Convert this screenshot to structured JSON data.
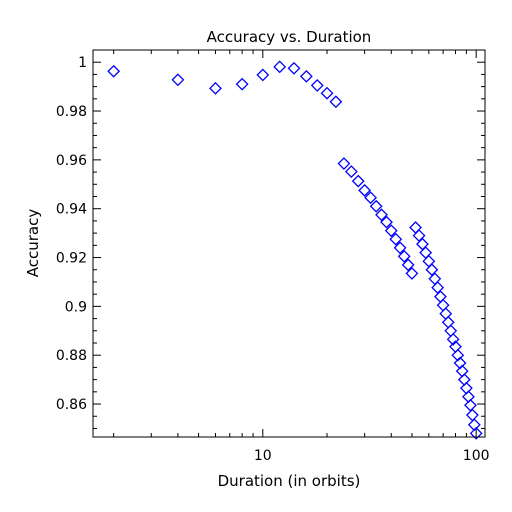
{
  "chart_data": {
    "type": "scatter",
    "title": "Accuracy vs. Duration",
    "xlabel": "Duration (in orbits)",
    "ylabel": "Accuracy",
    "x_scale": "log",
    "xlim": [
      1.6,
      110
    ],
    "ylim": [
      0.8465,
      1.005
    ],
    "grid": false,
    "marker": "diamond-open",
    "color": "#0000ff",
    "x_ticks": [
      {
        "value": 10,
        "label": "10"
      },
      {
        "value": 100,
        "label": "100"
      }
    ],
    "y_ticks": [
      {
        "value": 1.0,
        "label": "1"
      },
      {
        "value": 0.98,
        "label": "0.98"
      },
      {
        "value": 0.96,
        "label": "0.96"
      },
      {
        "value": 0.94,
        "label": "0.94"
      },
      {
        "value": 0.92,
        "label": "0.92"
      },
      {
        "value": 0.9,
        "label": "0.9"
      },
      {
        "value": 0.88,
        "label": "0.88"
      },
      {
        "value": 0.86,
        "label": "0.86"
      }
    ],
    "series": [
      {
        "points": [
          [
            2,
            0.9963
          ],
          [
            4,
            0.9928
          ],
          [
            6,
            0.9893
          ],
          [
            8,
            0.991
          ],
          [
            10,
            0.9948
          ],
          [
            12,
            0.9981
          ],
          [
            14,
            0.9975
          ],
          [
            16,
            0.9942
          ],
          [
            18,
            0.9905
          ],
          [
            20,
            0.9873
          ],
          [
            22,
            0.9838
          ],
          [
            24,
            0.9585
          ],
          [
            26,
            0.9552
          ],
          [
            28,
            0.9513
          ],
          [
            30,
            0.9475
          ],
          [
            32,
            0.9445
          ],
          [
            34,
            0.941
          ],
          [
            36,
            0.9375
          ],
          [
            38,
            0.9345
          ],
          [
            40,
            0.931
          ],
          [
            42,
            0.9275
          ],
          [
            44,
            0.924
          ],
          [
            46,
            0.9205
          ],
          [
            48,
            0.917
          ],
          [
            50,
            0.9135
          ],
          [
            52,
            0.9323
          ],
          [
            54,
            0.929
          ],
          [
            56,
            0.9255
          ],
          [
            58,
            0.922
          ],
          [
            60,
            0.9185
          ],
          [
            62,
            0.915
          ],
          [
            64,
            0.9113
          ],
          [
            66,
            0.9077
          ],
          [
            68,
            0.904
          ],
          [
            70,
            0.9005
          ],
          [
            72,
            0.897
          ],
          [
            74,
            0.8935
          ],
          [
            76,
            0.89
          ],
          [
            78,
            0.8865
          ],
          [
            80,
            0.8835
          ],
          [
            82,
            0.88
          ],
          [
            84,
            0.8768
          ],
          [
            86,
            0.8735
          ],
          [
            88,
            0.87
          ],
          [
            90,
            0.8665
          ],
          [
            92,
            0.863
          ],
          [
            94,
            0.8595
          ],
          [
            96,
            0.8555
          ],
          [
            98,
            0.8515
          ],
          [
            100,
            0.848
          ]
        ]
      }
    ]
  }
}
